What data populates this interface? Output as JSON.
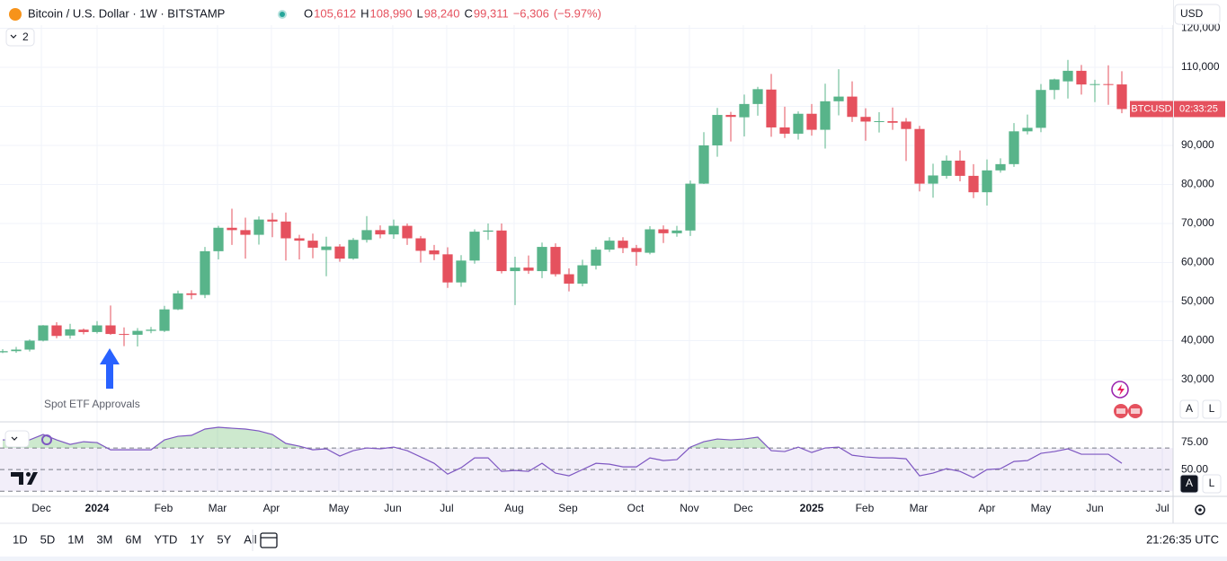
{
  "chart_data": [
    {
      "type": "candlestick",
      "title": "Bitcoin / U.S. Dollar · 1W · BITSTAMP",
      "header": {
        "ohlc": [
          {
            "label": "O",
            "value": "105,612"
          },
          {
            "label": "H",
            "value": "108,990"
          },
          {
            "label": "L",
            "value": "98,240"
          },
          {
            "label": "C",
            "value": "99,311"
          }
        ],
        "change": "−6,306",
        "change_pct": "(−5.97%)"
      },
      "annotation": "Spot ETF Approvals",
      "up_color": "#58b48a",
      "down_color": "#e5515e",
      "grid": true,
      "series": [
        {
          "name": "BTCUSD",
          "open": [
            37000,
            37300,
            37700,
            40000,
            43900,
            41300,
            42800,
            42200,
            43900,
            41700,
            41500,
            42500,
            42500,
            48000,
            52100,
            51700,
            62900,
            68900,
            68300,
            67100,
            71000,
            70500,
            66200,
            65600,
            63200,
            64100,
            61000,
            65800,
            68300,
            67200,
            69400,
            66200,
            63100,
            62100,
            54900,
            60500,
            67900,
            68200,
            57800,
            58700,
            57800,
            64000,
            57000,
            54600,
            59200,
            63300,
            65600,
            63700,
            62500,
            68500,
            67500,
            68200,
            80200,
            90000,
            97800,
            97200,
            100600,
            104300,
            94600,
            93000,
            98100,
            94000,
            101300,
            102500,
            97300,
            96100,
            96200,
            96100,
            94200,
            80200,
            82200,
            86100,
            82200,
            78000,
            83600,
            85200,
            93600,
            94500,
            104200,
            106400,
            109100,
            105600,
            105700,
            105612
          ],
          "high": [
            37800,
            38400,
            40300,
            44000,
            44700,
            44300,
            43100,
            45000,
            49000,
            43400,
            43200,
            43500,
            48900,
            52800,
            52900,
            64000,
            69400,
            73800,
            71500,
            71800,
            72700,
            72800,
            67100,
            67400,
            66600,
            64700,
            66300,
            71900,
            69500,
            71000,
            70000,
            66800,
            64500,
            63900,
            61900,
            68500,
            70000,
            70000,
            61500,
            61800,
            65100,
            64900,
            58500,
            60700,
            64000,
            66500,
            66500,
            64500,
            69300,
            69500,
            69400,
            81000,
            93400,
            99600,
            98600,
            103000,
            105000,
            108300,
            99900,
            98700,
            100600,
            105800,
            109500,
            106400,
            99500,
            98500,
            99700,
            97000,
            95000,
            85300,
            87400,
            88700,
            85200,
            86400,
            86700,
            95700,
            97900,
            105700,
            107100,
            111900,
            110600,
            106800,
            110500,
            108990
          ],
          "low": [
            36800,
            36900,
            37200,
            39800,
            40600,
            40500,
            41600,
            41800,
            41500,
            38600,
            38500,
            41900,
            42200,
            47800,
            50600,
            50900,
            60800,
            64500,
            61000,
            64600,
            66500,
            60500,
            60800,
            61100,
            56500,
            60200,
            60700,
            65100,
            66200,
            66100,
            64500,
            60000,
            60600,
            53500,
            53800,
            59700,
            65800,
            57200,
            49100,
            57100,
            56000,
            56400,
            52600,
            53900,
            58200,
            62700,
            62400,
            59200,
            62100,
            65000,
            66600,
            66800,
            80100,
            87100,
            91000,
            92300,
            97600,
            92200,
            91900,
            91500,
            92500,
            89200,
            97700,
            96000,
            91200,
            93300,
            94000,
            86000,
            78200,
            76600,
            81500,
            80800,
            76500,
            74600,
            83000,
            84500,
            92800,
            93400,
            101800,
            102000,
            103000,
            101100,
            100400,
            98240
          ],
          "close": [
            37300,
            37700,
            40000,
            43900,
            41200,
            42900,
            42200,
            43900,
            41700,
            41500,
            42500,
            42800,
            48000,
            52100,
            51700,
            62900,
            68900,
            68300,
            67100,
            71000,
            70500,
            66200,
            65600,
            63800,
            64100,
            61000,
            65800,
            68300,
            67200,
            69400,
            66200,
            63000,
            62100,
            54900,
            60500,
            67900,
            68200,
            57800,
            58700,
            57900,
            64000,
            57000,
            54600,
            59300,
            63300,
            65600,
            63700,
            62700,
            68500,
            67500,
            68200,
            80200,
            90000,
            97800,
            97300,
            100600,
            104400,
            94600,
            93000,
            98100,
            94000,
            101300,
            102500,
            97300,
            96100,
            96200,
            95800,
            94200,
            80200,
            82300,
            86100,
            82200,
            78000,
            83600,
            85200,
            93600,
            94500,
            104200,
            106900,
            109100,
            105600,
            105700,
            105612,
            99311
          ]
        }
      ],
      "xlim": [
        -0.2,
        86.8
      ],
      "xticks": [
        {
          "value": 2.87,
          "label": "Dec"
        },
        {
          "value": 7,
          "label": "2024"
        },
        {
          "value": 11.93,
          "label": "Feb"
        },
        {
          "value": 15.93,
          "label": "Mar"
        },
        {
          "value": 19.93,
          "label": "Apr"
        },
        {
          "value": 24.93,
          "label": "May"
        },
        {
          "value": 28.93,
          "label": "Jun"
        },
        {
          "value": 32.93,
          "label": "Jul"
        },
        {
          "value": 37.93,
          "label": "Aug"
        },
        {
          "value": 41.93,
          "label": "Sep"
        },
        {
          "value": 46.93,
          "label": "Oct"
        },
        {
          "value": 50.93,
          "label": "Nov"
        },
        {
          "value": 54.93,
          "label": "Dec"
        },
        {
          "value": 60,
          "label": "2025"
        },
        {
          "value": 63.93,
          "label": "Feb"
        },
        {
          "value": 67.93,
          "label": "Mar"
        },
        {
          "value": 73,
          "label": "Apr"
        },
        {
          "value": 77,
          "label": "May"
        },
        {
          "value": 81,
          "label": "Jun"
        },
        {
          "value": 86,
          "label": "Jul"
        }
      ],
      "ylim": [
        19650,
        120800
      ],
      "yticks": [
        {
          "value": 30000,
          "label": "30,000"
        },
        {
          "value": 40000,
          "label": "40,000"
        },
        {
          "value": 50000,
          "label": "50,000"
        },
        {
          "value": 60000,
          "label": "60,000"
        },
        {
          "value": 70000,
          "label": "70,000"
        },
        {
          "value": 80000,
          "label": "80,000"
        },
        {
          "value": 90000,
          "label": "90,000"
        },
        {
          "value": 100000,
          "label": "100,000"
        },
        {
          "value": 110000,
          "label": "110,000"
        },
        {
          "value": 120000,
          "label": "120,000"
        }
      ]
    },
    {
      "type": "line",
      "series": [
        {
          "color": "#7e57c2",
          "values": [
            77.5,
            77.5,
            77.5,
            82.5,
            77.5,
            73.3,
            75.8,
            75,
            68.3,
            68.3,
            68.3,
            68.3,
            77.5,
            80.8,
            81.7,
            87.5,
            89.2,
            88.3,
            87.5,
            85.8,
            82.5,
            74.2,
            71.7,
            68.3,
            69.2,
            62.5,
            67.5,
            70,
            69.2,
            70.8,
            67.5,
            61.7,
            55.8,
            45.8,
            51.7,
            60.8,
            60.8,
            48.3,
            49.2,
            48.3,
            55.8,
            46.7,
            44.2,
            50,
            55.8,
            55,
            52.5,
            52.5,
            60.8,
            58.3,
            59.2,
            70.8,
            75.8,
            78.3,
            77.5,
            78.3,
            80,
            67.5,
            66.7,
            70.8,
            65.8,
            70,
            70.8,
            63.3,
            61.7,
            60.8,
            60.8,
            60,
            44.2,
            46.7,
            50.8,
            48.3,
            42.5,
            50,
            50.8,
            57.5,
            58.3,
            65,
            66.7,
            69.2,
            64.2,
            64.2,
            64.2,
            55.8
          ]
        }
      ],
      "ylim": [
        26,
        92.5
      ],
      "yticks": [
        {
          "value": 75,
          "label": "75.00"
        },
        {
          "value": 50,
          "label": "50.00"
        }
      ],
      "bands": [
        70,
        50,
        30
      ],
      "band_color": "rgba(126,87,194,0.1)",
      "overbought_color": "rgba(76,175,80,0.28)"
    }
  ],
  "ui": {
    "currency": "USD",
    "indicator_count": 2,
    "scale_buttons": [
      "A",
      "L"
    ],
    "rsi_scale_buttons": [
      "A",
      "L"
    ],
    "countdown": "02:33:25",
    "ranges": [
      "1D",
      "5D",
      "1M",
      "3M",
      "6M",
      "YTD",
      "1Y",
      "5Y",
      "All"
    ],
    "clock": "21:26:35 UTC"
  }
}
